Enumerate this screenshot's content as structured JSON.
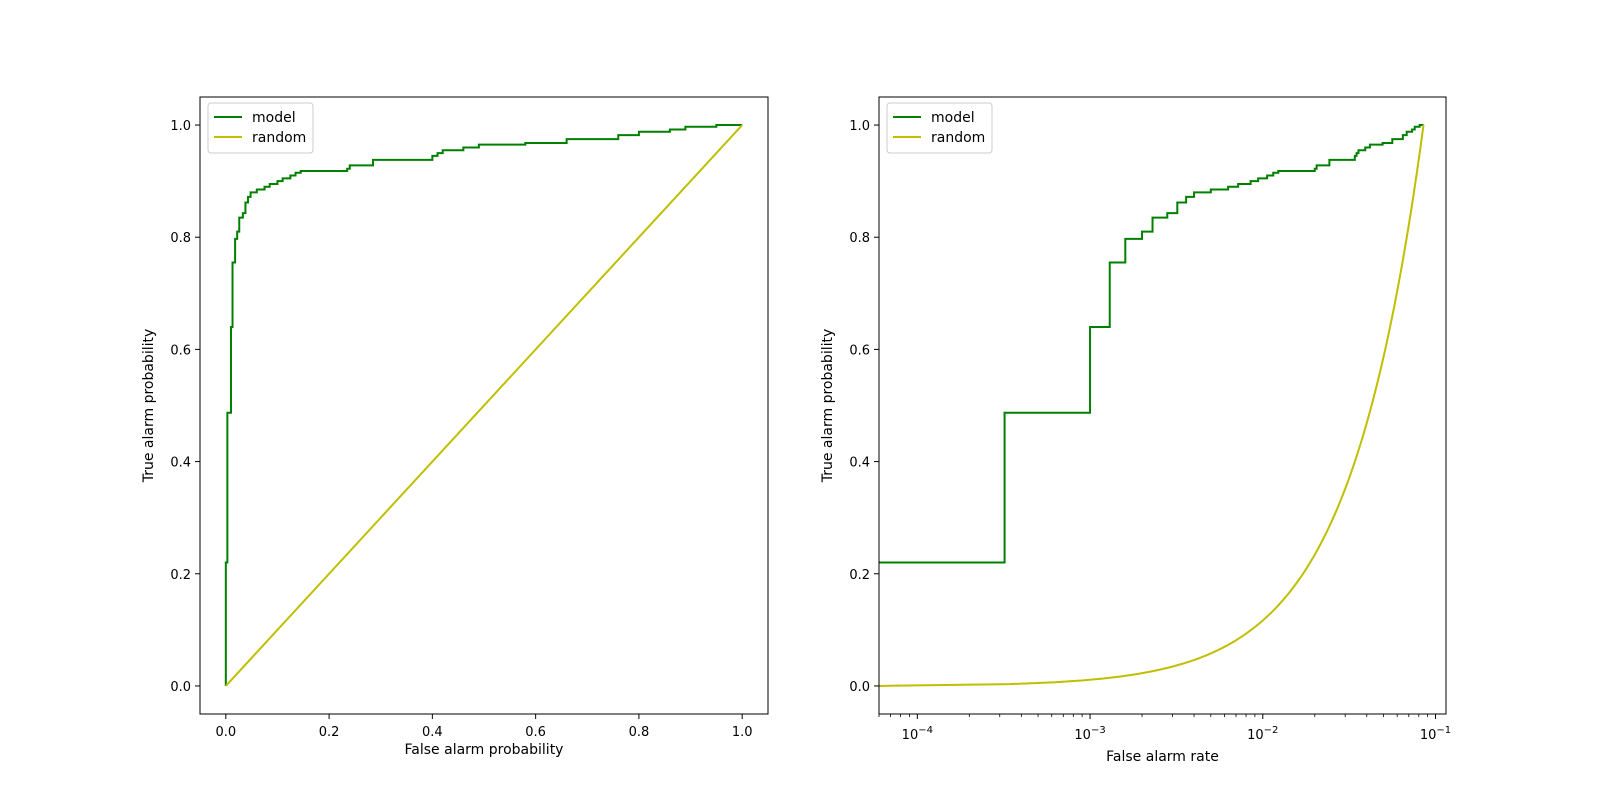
{
  "chart_data": [
    {
      "type": "line",
      "title": "",
      "xlabel": "False alarm probability",
      "ylabel": "True alarm probability",
      "xscale": "linear",
      "xlim": [
        -0.05,
        1.05
      ],
      "ylim": [
        -0.05,
        1.05
      ],
      "xticks": [
        0.0,
        0.2,
        0.4,
        0.6,
        0.8,
        1.0
      ],
      "xtick_labels": [
        "0.0",
        "0.2",
        "0.4",
        "0.6",
        "0.8",
        "1.0"
      ],
      "yticks": [
        0.0,
        0.2,
        0.4,
        0.6,
        0.8,
        1.0
      ],
      "ytick_labels": [
        "0.0",
        "0.2",
        "0.4",
        "0.6",
        "0.8",
        "1.0"
      ],
      "legend_position": "upper-left",
      "grid": false,
      "series": [
        {
          "name": "model",
          "color": "#008000",
          "step": true,
          "points": [
            [
              0.0,
              0.0
            ],
            [
              0.0,
              0.22
            ],
            [
              0.003,
              0.22
            ],
            [
              0.003,
              0.487
            ],
            [
              0.01,
              0.487
            ],
            [
              0.01,
              0.64
            ],
            [
              0.013,
              0.64
            ],
            [
              0.013,
              0.755
            ],
            [
              0.018,
              0.755
            ],
            [
              0.018,
              0.797
            ],
            [
              0.022,
              0.797
            ],
            [
              0.022,
              0.81
            ],
            [
              0.026,
              0.81
            ],
            [
              0.026,
              0.835
            ],
            [
              0.033,
              0.835
            ],
            [
              0.033,
              0.843
            ],
            [
              0.038,
              0.843
            ],
            [
              0.038,
              0.862
            ],
            [
              0.043,
              0.862
            ],
            [
              0.043,
              0.872
            ],
            [
              0.048,
              0.872
            ],
            [
              0.048,
              0.88
            ],
            [
              0.06,
              0.88
            ],
            [
              0.06,
              0.885
            ],
            [
              0.075,
              0.885
            ],
            [
              0.075,
              0.89
            ],
            [
              0.085,
              0.89
            ],
            [
              0.085,
              0.895
            ],
            [
              0.1,
              0.895
            ],
            [
              0.1,
              0.9
            ],
            [
              0.11,
              0.9
            ],
            [
              0.11,
              0.905
            ],
            [
              0.125,
              0.905
            ],
            [
              0.125,
              0.91
            ],
            [
              0.135,
              0.91
            ],
            [
              0.135,
              0.915
            ],
            [
              0.145,
              0.915
            ],
            [
              0.145,
              0.918
            ],
            [
              0.235,
              0.918
            ],
            [
              0.235,
              0.922
            ],
            [
              0.24,
              0.922
            ],
            [
              0.24,
              0.928
            ],
            [
              0.285,
              0.928
            ],
            [
              0.285,
              0.938
            ],
            [
              0.4,
              0.938
            ],
            [
              0.4,
              0.945
            ],
            [
              0.41,
              0.945
            ],
            [
              0.41,
              0.95
            ],
            [
              0.42,
              0.95
            ],
            [
              0.42,
              0.955
            ],
            [
              0.46,
              0.955
            ],
            [
              0.46,
              0.96
            ],
            [
              0.49,
              0.96
            ],
            [
              0.49,
              0.965
            ],
            [
              0.58,
              0.965
            ],
            [
              0.58,
              0.968
            ],
            [
              0.66,
              0.968
            ],
            [
              0.66,
              0.975
            ],
            [
              0.76,
              0.975
            ],
            [
              0.76,
              0.982
            ],
            [
              0.8,
              0.982
            ],
            [
              0.8,
              0.988
            ],
            [
              0.86,
              0.988
            ],
            [
              0.86,
              0.992
            ],
            [
              0.89,
              0.992
            ],
            [
              0.89,
              0.997
            ],
            [
              0.95,
              0.997
            ],
            [
              0.95,
              1.0
            ],
            [
              1.0,
              1.0
            ]
          ]
        },
        {
          "name": "random",
          "color": "#bfbf00",
          "points": [
            [
              0.0,
              0.0
            ],
            [
              1.0,
              1.0
            ]
          ]
        }
      ]
    },
    {
      "type": "line",
      "title": "",
      "xlabel": "False alarm rate",
      "ylabel": "True alarm probability",
      "xscale": "log",
      "xlim": [
        6e-05,
        0.115
      ],
      "ylim": [
        -0.05,
        1.05
      ],
      "xticks": [
        0.0001,
        0.001,
        0.01,
        0.1
      ],
      "xtick_labels": [
        [
          "10",
          "−4"
        ],
        [
          "10",
          "−3"
        ],
        [
          "10",
          "−2"
        ],
        [
          "10",
          "−1"
        ]
      ],
      "yticks": [
        0.0,
        0.2,
        0.4,
        0.6,
        0.8,
        1.0
      ],
      "ytick_labels": [
        "0.0",
        "0.2",
        "0.4",
        "0.6",
        "0.8",
        "1.0"
      ],
      "legend_position": "upper-left",
      "grid": false,
      "series": [
        {
          "name": "model",
          "color": "#008000",
          "step": true,
          "points": [
            [
              6e-05,
              0.22
            ],
            [
              0.00032,
              0.22
            ],
            [
              0.00032,
              0.487
            ],
            [
              0.001,
              0.487
            ],
            [
              0.001,
              0.64
            ],
            [
              0.0013,
              0.64
            ],
            [
              0.0013,
              0.755
            ],
            [
              0.0016,
              0.755
            ],
            [
              0.0016,
              0.797
            ],
            [
              0.002,
              0.797
            ],
            [
              0.002,
              0.81
            ],
            [
              0.0023,
              0.81
            ],
            [
              0.0023,
              0.835
            ],
            [
              0.0028,
              0.835
            ],
            [
              0.0028,
              0.843
            ],
            [
              0.0032,
              0.843
            ],
            [
              0.0032,
              0.862
            ],
            [
              0.0036,
              0.862
            ],
            [
              0.0036,
              0.872
            ],
            [
              0.004,
              0.872
            ],
            [
              0.004,
              0.88
            ],
            [
              0.005,
              0.88
            ],
            [
              0.005,
              0.885
            ],
            [
              0.0063,
              0.885
            ],
            [
              0.0063,
              0.89
            ],
            [
              0.0072,
              0.89
            ],
            [
              0.0072,
              0.895
            ],
            [
              0.0085,
              0.895
            ],
            [
              0.0085,
              0.9
            ],
            [
              0.0094,
              0.9
            ],
            [
              0.0094,
              0.905
            ],
            [
              0.0106,
              0.905
            ],
            [
              0.0106,
              0.91
            ],
            [
              0.0115,
              0.91
            ],
            [
              0.0115,
              0.915
            ],
            [
              0.0123,
              0.915
            ],
            [
              0.0123,
              0.918
            ],
            [
              0.02,
              0.918
            ],
            [
              0.02,
              0.922
            ],
            [
              0.0205,
              0.922
            ],
            [
              0.0205,
              0.928
            ],
            [
              0.0243,
              0.928
            ],
            [
              0.0243,
              0.938
            ],
            [
              0.0341,
              0.938
            ],
            [
              0.0341,
              0.945
            ],
            [
              0.0349,
              0.945
            ],
            [
              0.0349,
              0.95
            ],
            [
              0.0358,
              0.95
            ],
            [
              0.0358,
              0.955
            ],
            [
              0.0392,
              0.955
            ],
            [
              0.0392,
              0.96
            ],
            [
              0.0417,
              0.96
            ],
            [
              0.0417,
              0.965
            ],
            [
              0.0494,
              0.965
            ],
            [
              0.0494,
              0.968
            ],
            [
              0.0562,
              0.968
            ],
            [
              0.0562,
              0.975
            ],
            [
              0.0647,
              0.975
            ],
            [
              0.0647,
              0.982
            ],
            [
              0.0681,
              0.982
            ],
            [
              0.0681,
              0.988
            ],
            [
              0.0732,
              0.988
            ],
            [
              0.0732,
              0.992
            ],
            [
              0.0758,
              0.992
            ],
            [
              0.0758,
              0.997
            ],
            [
              0.0809,
              0.997
            ],
            [
              0.0809,
              1.0
            ],
            [
              0.0852,
              1.0
            ]
          ]
        },
        {
          "name": "random",
          "color": "#bfbf00",
          "linear_in_x": true,
          "x_range": [
            6e-05,
            0.0852
          ],
          "y_range": [
            0.0,
            1.0
          ]
        }
      ]
    }
  ]
}
